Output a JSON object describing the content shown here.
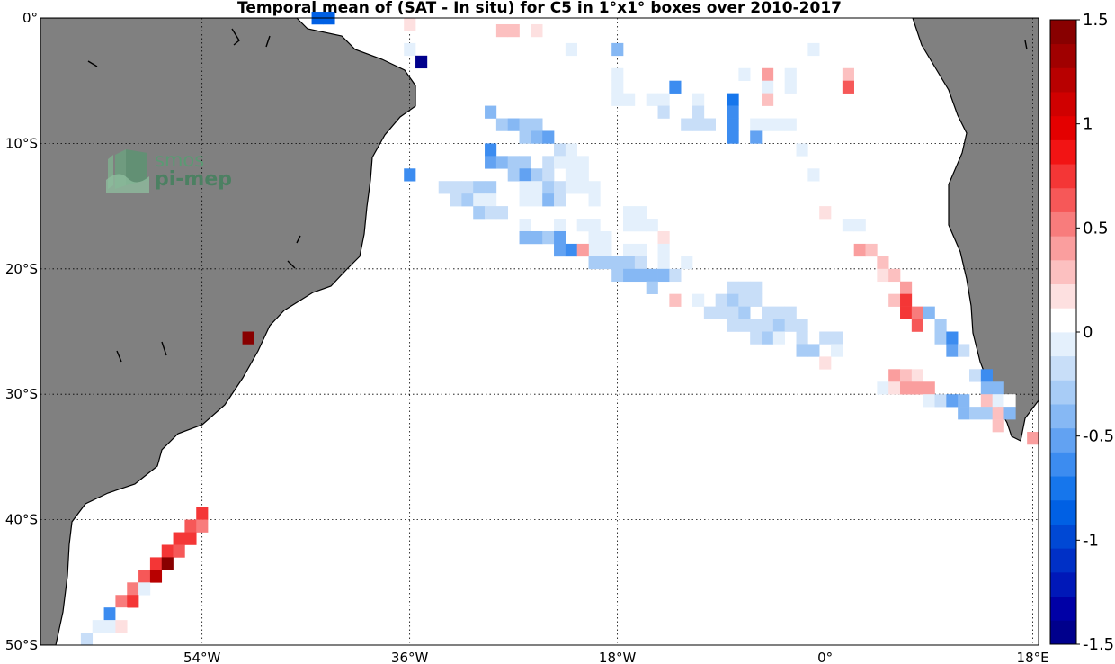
{
  "title": "Temporal mean of (SAT - In situ) for C5 in 1°x1° boxes over 2010-2017",
  "logo": {
    "line1": "smos",
    "line2": "pi-mep"
  },
  "map": {
    "lon_range": [
      -68,
      18.5
    ],
    "lat_range": [
      -50,
      0
    ],
    "land_color": "#808080",
    "ocean_color": "#ffffff",
    "grid": "dotted",
    "lon_ticks": [
      {
        "value": -54,
        "label": "54°W"
      },
      {
        "value": -36,
        "label": "36°W"
      },
      {
        "value": -18,
        "label": "18°W"
      },
      {
        "value": 0,
        "label": "0°"
      },
      {
        "value": 18,
        "label": "18°E"
      }
    ],
    "lat_ticks": [
      {
        "value": 0,
        "label": "0°"
      },
      {
        "value": -10,
        "label": "10°S"
      },
      {
        "value": -20,
        "label": "20°S"
      },
      {
        "value": -30,
        "label": "30°S"
      },
      {
        "value": -40,
        "label": "40°S"
      },
      {
        "value": -50,
        "label": "50°S"
      }
    ]
  },
  "colorbar": {
    "min": -1.5,
    "max": 1.5,
    "ticks": [
      {
        "value": 1.5,
        "label": "1.5"
      },
      {
        "value": 1,
        "label": "1"
      },
      {
        "value": 0.5,
        "label": "0.5"
      },
      {
        "value": 0,
        "label": "0"
      },
      {
        "value": -0.5,
        "label": "-0.5"
      },
      {
        "value": -1,
        "label": "-1"
      },
      {
        "value": -1.5,
        "label": "-1.5"
      }
    ],
    "colors": [
      "#00008c",
      "#0000a6",
      "#0018b8",
      "#0030c6",
      "#0048d4",
      "#0060e4",
      "#1676ec",
      "#3c8cf0",
      "#62a2f2",
      "#86b8f4",
      "#a8ccf6",
      "#c8def8",
      "#e4f0fc",
      "#ffffff",
      "#fde0e0",
      "#fcc0c0",
      "#fa9e9e",
      "#f87c7c",
      "#f65858",
      "#f43636",
      "#f21414",
      "#e40000",
      "#d00000",
      "#b80000",
      "#a00000",
      "#880000"
    ]
  },
  "chart_data": {
    "type": "heatmap",
    "title": "Temporal mean of (SAT - In situ) for C5 in 1°x1° boxes over 2010-2017",
    "xlabel": "",
    "ylabel": "",
    "x_unit": "longitude (deg E)",
    "y_unit": "latitude (deg N)",
    "xlim": [
      -68,
      18.5
    ],
    "ylim": [
      -50,
      0
    ],
    "value_range": [
      -1.5,
      1.5
    ],
    "cells": [
      [
        -44,
        0,
        -0.9
      ],
      [
        -43,
        0,
        -0.9
      ],
      [
        -36,
        -0.5,
        0.2
      ],
      [
        -28,
        -1,
        0.3
      ],
      [
        -27,
        -1,
        0.3
      ],
      [
        -25,
        -1,
        0.2
      ],
      [
        -36,
        -2.5,
        -0.1
      ],
      [
        -22,
        -2.5,
        -0.1
      ],
      [
        -18,
        -2.5,
        -0.4
      ],
      [
        -1,
        -2.5,
        -0.05
      ],
      [
        -35,
        -3.5,
        -1.4
      ],
      [
        -18,
        -4.5,
        -0.1
      ],
      [
        -7,
        -4.5,
        -0.05
      ],
      [
        -5,
        -4.5,
        0.4
      ],
      [
        -3,
        -4.5,
        -0.1
      ],
      [
        2,
        -4.5,
        0.3
      ],
      [
        -18,
        -5.5,
        -0.1
      ],
      [
        -13,
        -5.5,
        -0.6
      ],
      [
        -5,
        -5.5,
        -0.1
      ],
      [
        -3,
        -5.5,
        -0.1
      ],
      [
        2,
        -5.5,
        0.6
      ],
      [
        -18,
        -6.5,
        -0.05
      ],
      [
        -17,
        -6.5,
        -0.05
      ],
      [
        -15,
        -6.5,
        -0.1
      ],
      [
        -14,
        -6.5,
        -0.05
      ],
      [
        -11,
        -6.5,
        -0.1
      ],
      [
        -8,
        -6.5,
        -0.7
      ],
      [
        -5,
        -6.5,
        0.3
      ],
      [
        -29,
        -7.5,
        -0.4
      ],
      [
        -14,
        -7.5,
        -0.2
      ],
      [
        -11,
        -7.5,
        -0.2
      ],
      [
        -8,
        -7.5,
        -0.6
      ],
      [
        -28,
        -8.5,
        -0.3
      ],
      [
        -27,
        -8.5,
        -0.4
      ],
      [
        -26,
        -8.5,
        -0.3
      ],
      [
        -25,
        -8.5,
        -0.3
      ],
      [
        -12,
        -8.5,
        -0.2
      ],
      [
        -11,
        -8.5,
        -0.2
      ],
      [
        -10,
        -8.5,
        -0.2
      ],
      [
        -8,
        -8.5,
        -0.6
      ],
      [
        -6,
        -8.5,
        -0.1
      ],
      [
        -5,
        -8.5,
        -0.1
      ],
      [
        -4,
        -8.5,
        -0.1
      ],
      [
        -3,
        -8.5,
        -0.1
      ],
      [
        -26,
        -9.5,
        -0.3
      ],
      [
        -25,
        -9.5,
        -0.4
      ],
      [
        -24,
        -9.5,
        -0.5
      ],
      [
        -8,
        -9.5,
        -0.6
      ],
      [
        -6,
        -9.5,
        -0.5
      ],
      [
        -29,
        -10.5,
        -0.6
      ],
      [
        -23,
        -10.5,
        -0.2
      ],
      [
        -22,
        -10.5,
        -0.1
      ],
      [
        -2,
        -10.5,
        -0.1
      ],
      [
        -29,
        -11.5,
        -0.5
      ],
      [
        -28,
        -11.5,
        -0.4
      ],
      [
        -27,
        -11.5,
        -0.3
      ],
      [
        -26,
        -11.5,
        -0.3
      ],
      [
        -24,
        -11.5,
        -0.2
      ],
      [
        -23,
        -11.5,
        -0.1
      ],
      [
        -22,
        -11.5,
        -0.1
      ],
      [
        -21,
        -11.5,
        -0.1
      ],
      [
        -36,
        -12.5,
        -0.6
      ],
      [
        -27,
        -12.5,
        -0.3
      ],
      [
        -26,
        -12.5,
        -0.5
      ],
      [
        -25,
        -12.5,
        -0.3
      ],
      [
        -24,
        -12.5,
        -0.2
      ],
      [
        -22,
        -12.5,
        -0.1
      ],
      [
        -21,
        -12.5,
        -0.1
      ],
      [
        -1,
        -12.5,
        -0.05
      ],
      [
        -33,
        -13.5,
        -0.2
      ],
      [
        -32,
        -13.5,
        -0.2
      ],
      [
        -31,
        -13.5,
        -0.2
      ],
      [
        -30,
        -13.5,
        -0.3
      ],
      [
        -29,
        -13.5,
        -0.3
      ],
      [
        -26,
        -13.5,
        -0.1
      ],
      [
        -25,
        -13.5,
        -0.1
      ],
      [
        -24,
        -13.5,
        -0.3
      ],
      [
        -23,
        -13.5,
        -0.2
      ],
      [
        -22,
        -13.5,
        -0.1
      ],
      [
        -21,
        -13.5,
        -0.1
      ],
      [
        -20,
        -13.5,
        -0.1
      ],
      [
        -32,
        -14.5,
        -0.2
      ],
      [
        -31,
        -14.5,
        -0.3
      ],
      [
        -30,
        -14.5,
        -0.1
      ],
      [
        -29,
        -14.5,
        -0.1
      ],
      [
        -26,
        -14.5,
        -0.1
      ],
      [
        -25,
        -14.5,
        -0.1
      ],
      [
        -24,
        -14.5,
        -0.4
      ],
      [
        -23,
        -14.5,
        -0.2
      ],
      [
        -20,
        -14.5,
        -0.1
      ],
      [
        -30,
        -15.5,
        -0.3
      ],
      [
        -29,
        -15.5,
        -0.2
      ],
      [
        -28,
        -15.5,
        -0.2
      ],
      [
        -17,
        -15.5,
        -0.1
      ],
      [
        -16,
        -15.5,
        -0.1
      ],
      [
        0,
        -15.5,
        0.2
      ],
      [
        -26,
        -16.5,
        -0.1
      ],
      [
        -23,
        -16.5,
        -0.1
      ],
      [
        -21,
        -16.5,
        -0.1
      ],
      [
        -20,
        -16.5,
        -0.1
      ],
      [
        -17,
        -16.5,
        -0.1
      ],
      [
        -16,
        -16.5,
        -0.05
      ],
      [
        -15,
        -16.5,
        -0.1
      ],
      [
        2,
        -16.5,
        -0.1
      ],
      [
        3,
        -16.5,
        -0.1
      ],
      [
        -26,
        -17.5,
        -0.4
      ],
      [
        -25,
        -17.5,
        -0.4
      ],
      [
        -24,
        -17.5,
        -0.3
      ],
      [
        -23,
        -17.5,
        -0.5
      ],
      [
        -20,
        -17.5,
        -0.1
      ],
      [
        -19,
        -17.5,
        -0.1
      ],
      [
        -14,
        -17.5,
        0.2
      ],
      [
        -23,
        -18.5,
        -0.5
      ],
      [
        -22,
        -18.5,
        -0.6
      ],
      [
        -20,
        -18.5,
        -0.1
      ],
      [
        -19,
        -18.5,
        -0.1
      ],
      [
        -21,
        -18.5,
        0.4
      ],
      [
        -17,
        -18.5,
        -0.1
      ],
      [
        -16,
        -18.5,
        -0.1
      ],
      [
        -14,
        -18.5,
        -0.1
      ],
      [
        3,
        -18.5,
        0.4
      ],
      [
        4,
        -18.5,
        0.3
      ],
      [
        -20,
        -19.5,
        -0.3
      ],
      [
        -19,
        -19.5,
        -0.3
      ],
      [
        -18,
        -19.5,
        -0.3
      ],
      [
        -17,
        -19.5,
        -0.3
      ],
      [
        -16,
        -19.5,
        -0.2
      ],
      [
        -14,
        -19.5,
        -0.1
      ],
      [
        -12,
        -19.5,
        -0.1
      ],
      [
        5,
        -19.5,
        0.3
      ],
      [
        -18,
        -20.5,
        -0.3
      ],
      [
        -17,
        -20.5,
        -0.4
      ],
      [
        -16,
        -20.5,
        -0.4
      ],
      [
        -15,
        -20.5,
        -0.4
      ],
      [
        -14,
        -20.5,
        -0.4
      ],
      [
        -13,
        -20.5,
        -0.2
      ],
      [
        5,
        -20.5,
        0.2
      ],
      [
        6,
        -20.5,
        0.3
      ],
      [
        -15,
        -21.5,
        -0.3
      ],
      [
        -8,
        -21.5,
        -0.2
      ],
      [
        -7,
        -21.5,
        -0.2
      ],
      [
        -6,
        -21.5,
        -0.2
      ],
      [
        7,
        -21.5,
        0.4
      ],
      [
        -13,
        -22.5,
        0.3
      ],
      [
        -11,
        -22.5,
        -0.1
      ],
      [
        -9,
        -22.5,
        -0.2
      ],
      [
        -8,
        -22.5,
        -0.3
      ],
      [
        -7,
        -22.5,
        -0.2
      ],
      [
        -6,
        -22.5,
        -0.2
      ],
      [
        6,
        -22.5,
        0.3
      ],
      [
        7,
        -22.5,
        0.8
      ],
      [
        -10,
        -23.5,
        -0.2
      ],
      [
        -9,
        -23.5,
        -0.2
      ],
      [
        -8,
        -23.5,
        -0.2
      ],
      [
        -7,
        -23.5,
        -0.3
      ],
      [
        -5,
        -23.5,
        -0.2
      ],
      [
        -4,
        -23.5,
        -0.2
      ],
      [
        -3,
        -23.5,
        -0.2
      ],
      [
        7,
        -23.5,
        0.8
      ],
      [
        8,
        -23.5,
        0.5
      ],
      [
        9,
        -23.5,
        -0.4
      ],
      [
        -8,
        -24.5,
        -0.2
      ],
      [
        -7,
        -24.5,
        -0.2
      ],
      [
        -6,
        -24.5,
        -0.2
      ],
      [
        -5,
        -24.5,
        -0.2
      ],
      [
        -4,
        -24.5,
        -0.3
      ],
      [
        -3,
        -24.5,
        -0.2
      ],
      [
        -2,
        -24.5,
        -0.2
      ],
      [
        8,
        -24.5,
        0.6
      ],
      [
        10,
        -24.5,
        -0.3
      ],
      [
        -50,
        -25.5,
        1.4
      ],
      [
        -6,
        -25.5,
        -0.2
      ],
      [
        -5,
        -25.5,
        -0.3
      ],
      [
        -4,
        -25.5,
        -0.1
      ],
      [
        -2,
        -25.5,
        -0.2
      ],
      [
        0,
        -25.5,
        -0.2
      ],
      [
        1,
        -25.5,
        -0.2
      ],
      [
        10,
        -25.5,
        -0.3
      ],
      [
        11,
        -25.5,
        -0.6
      ],
      [
        -2,
        -26.5,
        -0.3
      ],
      [
        -1,
        -26.5,
        -0.3
      ],
      [
        1,
        -26.5,
        -0.1
      ],
      [
        11,
        -26.5,
        -0.5
      ],
      [
        12,
        -26.5,
        -0.2
      ],
      [
        0,
        -27.5,
        0.2
      ],
      [
        6,
        -28.5,
        0.4
      ],
      [
        7,
        -28.5,
        0.3
      ],
      [
        8,
        -28.5,
        0.2
      ],
      [
        13,
        -28.5,
        -0.2
      ],
      [
        14,
        -28.5,
        -0.6
      ],
      [
        5,
        -29.5,
        -0.1
      ],
      [
        6,
        -29.5,
        0.2
      ],
      [
        7,
        -29.5,
        0.4
      ],
      [
        8,
        -29.5,
        0.4
      ],
      [
        9,
        -29.5,
        0.4
      ],
      [
        14,
        -29.5,
        -0.4
      ],
      [
        15,
        -29.5,
        -0.4
      ],
      [
        9,
        -30.5,
        -0.1
      ],
      [
        10,
        -30.5,
        -0.2
      ],
      [
        11,
        -30.5,
        -0.5
      ],
      [
        12,
        -30.5,
        -0.4
      ],
      [
        14,
        -30.5,
        0.3
      ],
      [
        15,
        -30.5,
        -0.1
      ],
      [
        16,
        -30.5,
        0.1
      ],
      [
        12,
        -31.5,
        -0.4
      ],
      [
        13,
        -31.5,
        -0.3
      ],
      [
        14,
        -31.5,
        -0.3
      ],
      [
        15,
        -31.5,
        0.3
      ],
      [
        16,
        -31.5,
        -0.4
      ],
      [
        15,
        -32.5,
        0.3
      ],
      [
        18,
        -33.5,
        0.4
      ],
      [
        -54,
        -39.5,
        0.7
      ],
      [
        -55,
        -40.5,
        0.6
      ],
      [
        -54,
        -40.5,
        0.5
      ],
      [
        -56,
        -41.5,
        0.8
      ],
      [
        -55,
        -41.5,
        0.8
      ],
      [
        -57,
        -42.5,
        0.8
      ],
      [
        -56,
        -42.5,
        0.6
      ],
      [
        -58,
        -43.5,
        0.7
      ],
      [
        -57,
        -43.5,
        1.4
      ],
      [
        -59,
        -44.5,
        0.6
      ],
      [
        -58,
        -44.5,
        1.2
      ],
      [
        -60,
        -45.5,
        0.5
      ],
      [
        -59,
        -45.5,
        -0.1
      ],
      [
        -61,
        -46.5,
        0.5
      ],
      [
        -60,
        -46.5,
        0.8
      ],
      [
        -62,
        -47.5,
        -0.6
      ],
      [
        -61,
        -47.5,
        0.05
      ],
      [
        -63,
        -48.5,
        -0.1
      ],
      [
        -62,
        -48.5,
        -0.1
      ],
      [
        -61,
        -48.5,
        0.2
      ],
      [
        -64,
        -49.5,
        -0.2
      ]
    ]
  }
}
